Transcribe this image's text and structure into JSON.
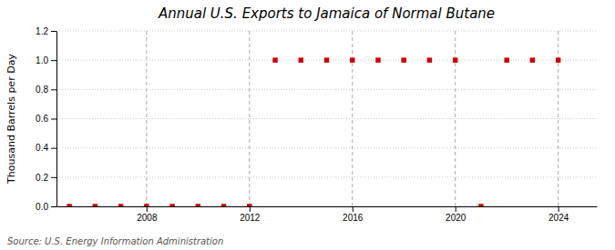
{
  "chart_data": {
    "type": "scatter",
    "title": "Annual U.S. Exports to Jamaica of Normal Butane",
    "ylabel": "Thousand Barrels per Day",
    "source": "Source: U.S. Energy Information Administration",
    "x": [
      2005,
      2006,
      2007,
      2008,
      2009,
      2010,
      2011,
      2012,
      2013,
      2014,
      2015,
      2016,
      2017,
      2018,
      2019,
      2020,
      2021,
      2022,
      2023,
      2024
    ],
    "values": [
      0,
      0,
      0,
      0,
      0,
      0,
      0,
      0,
      1,
      1,
      1,
      1,
      1,
      1,
      1,
      1,
      0,
      1,
      1,
      1
    ],
    "color": "#cc0000",
    "marker": "square",
    "xlim": [
      2004.5,
      2025.5
    ],
    "xticks": [
      2008,
      2012,
      2016,
      2020,
      2024
    ],
    "ylim": [
      0,
      1.2
    ],
    "yticks": [
      {
        "value": 0.0,
        "label": "0.0"
      },
      0.2,
      0.4,
      0.6,
      0.8,
      {
        "value": 1.0,
        "label": "1.0"
      },
      1.2
    ],
    "grid": true
  }
}
